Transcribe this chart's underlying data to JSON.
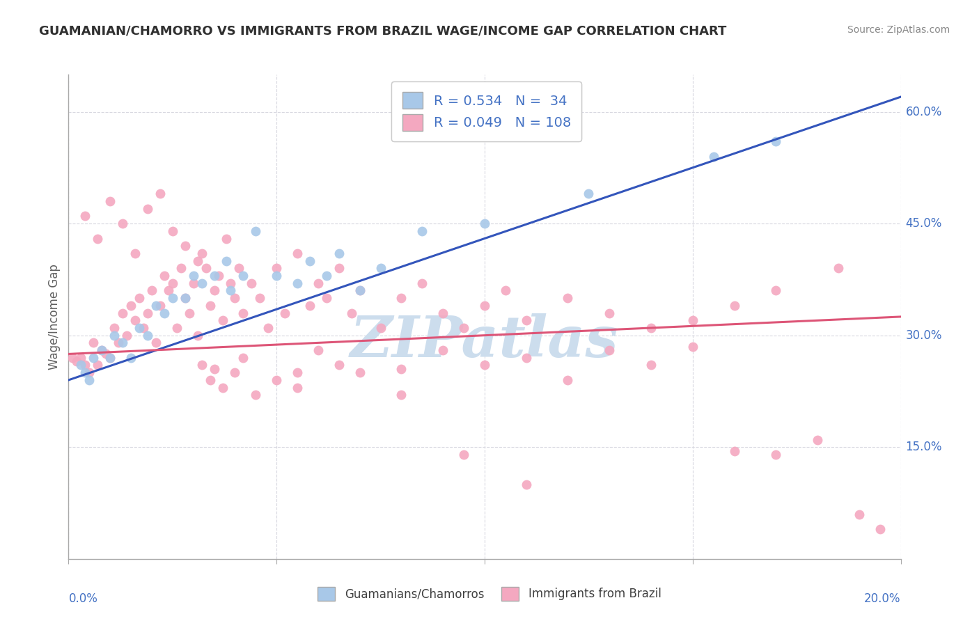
{
  "title": "GUAMANIAN/CHAMORRO VS IMMIGRANTS FROM BRAZIL WAGE/INCOME GAP CORRELATION CHART",
  "source_text": "Source: ZipAtlas.com",
  "ylabel": "Wage/Income Gap",
  "right_yticks": [
    15.0,
    30.0,
    45.0,
    60.0
  ],
  "right_ytick_labels": [
    "15.0%",
    "30.0%",
    "45.0%",
    "60.0%"
  ],
  "xmin": 0.0,
  "xmax": 20.0,
  "ymin": 0.0,
  "ymax": 65.0,
  "watermark": "ZIPatlas",
  "watermark_color": "#ccdded",
  "blue_dots_x": [
    0.3,
    0.4,
    0.5,
    0.6,
    0.8,
    1.0,
    1.1,
    1.3,
    1.5,
    1.7,
    1.9,
    2.1,
    2.3,
    2.5,
    2.8,
    3.0,
    3.2,
    3.5,
    3.8,
    3.9,
    4.2,
    4.5,
    5.0,
    5.5,
    5.8,
    6.2,
    6.5,
    7.0,
    7.5,
    8.5,
    10.0,
    12.5,
    15.5,
    17.0
  ],
  "blue_dots_y": [
    26.0,
    25.0,
    24.0,
    27.0,
    28.0,
    27.0,
    30.0,
    29.0,
    27.0,
    31.0,
    30.0,
    34.0,
    33.0,
    35.0,
    35.0,
    38.0,
    37.0,
    38.0,
    40.0,
    36.0,
    38.0,
    44.0,
    38.0,
    37.0,
    40.0,
    38.0,
    41.0,
    36.0,
    39.0,
    44.0,
    45.0,
    49.0,
    54.0,
    56.0
  ],
  "pink_dots_x": [
    0.1,
    0.2,
    0.3,
    0.4,
    0.5,
    0.6,
    0.7,
    0.8,
    0.9,
    1.0,
    1.1,
    1.2,
    1.3,
    1.4,
    1.5,
    1.6,
    1.7,
    1.8,
    1.9,
    2.0,
    2.1,
    2.2,
    2.3,
    2.4,
    2.5,
    2.6,
    2.7,
    2.8,
    2.9,
    3.0,
    3.1,
    3.2,
    3.3,
    3.4,
    3.5,
    3.6,
    3.7,
    3.8,
    3.9,
    4.0,
    4.1,
    4.2,
    4.4,
    4.6,
    4.8,
    5.0,
    5.2,
    5.5,
    5.8,
    6.0,
    6.2,
    6.5,
    6.8,
    7.0,
    7.5,
    8.0,
    8.5,
    9.0,
    9.5,
    10.0,
    10.5,
    11.0,
    12.0,
    13.0,
    14.0,
    15.0,
    16.0,
    17.0,
    18.5,
    0.4,
    0.7,
    1.0,
    1.3,
    1.6,
    1.9,
    2.2,
    2.5,
    2.8,
    3.1,
    3.4,
    3.7,
    4.0,
    4.5,
    5.0,
    5.5,
    6.0,
    7.0,
    8.0,
    9.0,
    10.0,
    11.0,
    12.0,
    13.0,
    14.0,
    15.0,
    16.0,
    17.0,
    18.0,
    19.0,
    19.5,
    3.2,
    3.5,
    4.2,
    5.5,
    6.5,
    8.0,
    9.5,
    11.0
  ],
  "pink_dots_y": [
    27.0,
    26.5,
    27.0,
    26.0,
    25.0,
    29.0,
    26.0,
    28.0,
    27.5,
    27.0,
    31.0,
    29.0,
    33.0,
    30.0,
    34.0,
    32.0,
    35.0,
    31.0,
    33.0,
    36.0,
    29.0,
    34.0,
    38.0,
    36.0,
    37.0,
    31.0,
    39.0,
    35.0,
    33.0,
    37.0,
    30.0,
    41.0,
    39.0,
    34.0,
    36.0,
    38.0,
    32.0,
    43.0,
    37.0,
    35.0,
    39.0,
    33.0,
    37.0,
    35.0,
    31.0,
    39.0,
    33.0,
    41.0,
    34.0,
    37.0,
    35.0,
    39.0,
    33.0,
    36.0,
    31.0,
    35.0,
    37.0,
    33.0,
    31.0,
    34.0,
    36.0,
    32.0,
    35.0,
    33.0,
    31.0,
    32.0,
    34.0,
    36.0,
    39.0,
    46.0,
    43.0,
    48.0,
    45.0,
    41.0,
    47.0,
    49.0,
    44.0,
    42.0,
    40.0,
    24.0,
    23.0,
    25.0,
    22.0,
    24.0,
    23.0,
    28.0,
    25.0,
    22.0,
    28.0,
    26.0,
    27.0,
    24.0,
    28.0,
    26.0,
    28.5,
    14.5,
    14.0,
    16.0,
    6.0,
    4.0,
    26.0,
    25.5,
    27.0,
    25.0,
    26.0,
    25.5,
    14.0,
    10.0
  ],
  "blue_line_x": [
    0.0,
    20.0
  ],
  "blue_line_y": [
    24.0,
    62.0
  ],
  "pink_line_x": [
    0.0,
    20.0
  ],
  "pink_line_y": [
    27.5,
    32.5
  ],
  "dot_size": 100,
  "blue_dot_color": "#a8c8e8",
  "pink_dot_color": "#f4a8c0",
  "blue_line_color": "#3355bb",
  "pink_line_color": "#dd5577",
  "grid_color": "#d8d8e0",
  "background_color": "#ffffff",
  "title_color": "#303030",
  "axis_color": "#4472c4",
  "ylabel_color": "#606060",
  "title_fontsize": 13,
  "source_fontsize": 10,
  "legend_blue_label": "R = 0.534   N =  34",
  "legend_pink_label": "R = 0.049   N = 108",
  "bottom_legend_blue": "Guamanians/Chamorros",
  "bottom_legend_pink": "Immigrants from Brazil"
}
